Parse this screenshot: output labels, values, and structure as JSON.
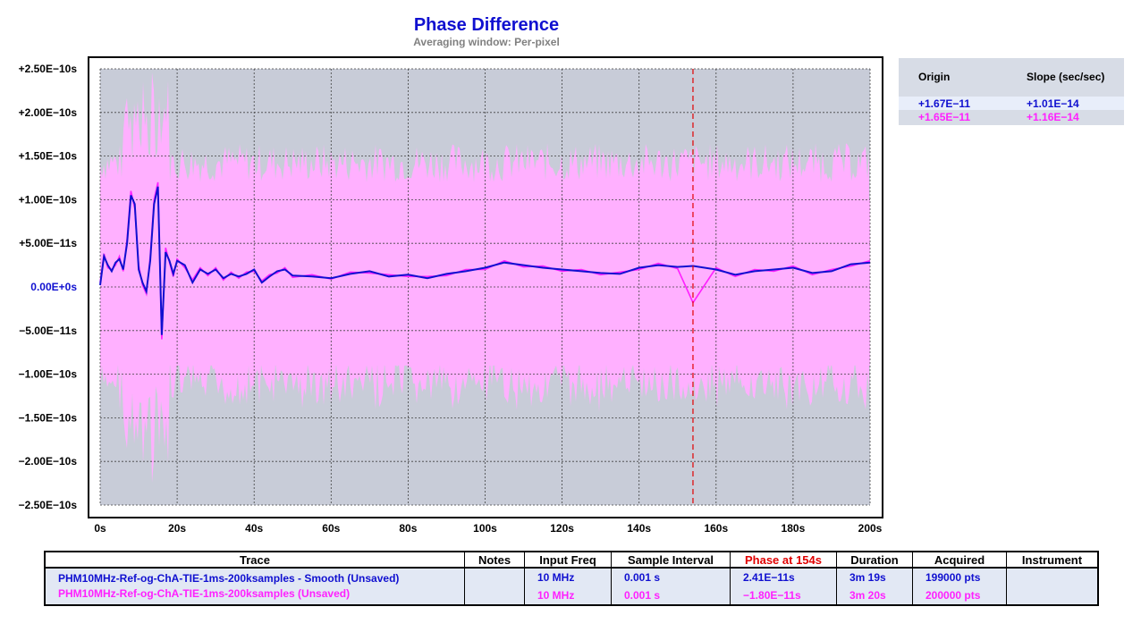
{
  "chart_data": {
    "type": "line",
    "title": "Phase Difference",
    "subtitle": "Averaging window: Per-pixel",
    "xlim": [
      0,
      200
    ],
    "ylim": [
      -2.5e-10,
      2.5e-10
    ],
    "x_ticks": [
      "0s",
      "20s",
      "40s",
      "60s",
      "80s",
      "100s",
      "120s",
      "140s",
      "160s",
      "180s",
      "200s"
    ],
    "y_ticks": [
      "+2.50E−10s",
      "+2.00E−10s",
      "+1.50E−10s",
      "+1.00E−10s",
      "+5.00E−11s",
      "0.00E+0s",
      "−5.00E−11s",
      "−1.00E−10s",
      "−1.50E−10s",
      "−2.00E−10s",
      "−2.50E−10s"
    ],
    "cursor_x": 154,
    "grid": true,
    "series": [
      {
        "color": "#1010d0",
        "x": [
          0,
          1,
          2,
          3,
          4,
          5,
          6,
          7,
          8,
          9,
          10,
          11,
          12,
          13,
          14,
          15,
          16,
          17,
          18,
          19,
          20,
          22,
          24,
          26,
          28,
          30,
          32,
          34,
          36,
          38,
          40,
          42,
          44,
          46,
          48,
          50,
          55,
          60,
          65,
          70,
          75,
          80,
          85,
          90,
          95,
          100,
          105,
          110,
          115,
          120,
          125,
          130,
          135,
          140,
          145,
          150,
          154,
          160,
          165,
          170,
          175,
          180,
          185,
          190,
          195,
          200
        ],
        "values": [
          2e-12,
          3.5e-11,
          2.5e-11,
          1.8e-11,
          2.8e-11,
          3.2e-11,
          2e-11,
          5e-11,
          1.05e-10,
          9.5e-11,
          2e-11,
          5e-12,
          -5e-12,
          3e-11,
          9.5e-11,
          1.15e-10,
          -5.5e-11,
          4e-11,
          3e-11,
          1.5e-11,
          3e-11,
          2.5e-11,
          5e-12,
          2e-11,
          1.5e-11,
          2e-11,
          1e-11,
          1.5e-11,
          1.2e-11,
          1.5e-11,
          2e-11,
          5e-12,
          1.2e-11,
          1.8e-11,
          2e-11,
          1.3e-11,
          1.2e-11,
          1e-11,
          1.5e-11,
          1.8e-11,
          1.2e-11,
          1.4e-11,
          1e-11,
          1.5e-11,
          1.8e-11,
          2.2e-11,
          2.8e-11,
          2.5e-11,
          2.2e-11,
          2e-11,
          1.8e-11,
          1.6e-11,
          1.5e-11,
          2.2e-11,
          2.5e-11,
          2.3e-11,
          2.41e-11,
          2e-11,
          1.4e-11,
          1.8e-11,
          2e-11,
          2.2e-11,
          1.6e-11,
          1.8e-11,
          2.6e-11,
          2.8e-11
        ]
      },
      {
        "color": "#ff20ff",
        "x": [
          0,
          1,
          2,
          3,
          4,
          5,
          6,
          7,
          8,
          9,
          10,
          11,
          12,
          13,
          14,
          15,
          16,
          17,
          18,
          19,
          20,
          22,
          24,
          26,
          28,
          30,
          32,
          34,
          36,
          38,
          40,
          42,
          44,
          46,
          48,
          50,
          55,
          60,
          65,
          70,
          75,
          80,
          85,
          90,
          95,
          100,
          105,
          110,
          115,
          120,
          125,
          130,
          135,
          140,
          145,
          150,
          154,
          160,
          165,
          170,
          175,
          180,
          185,
          190,
          195,
          200
        ],
        "values": [
          5e-12,
          3.8e-11,
          2.2e-11,
          2e-11,
          2.5e-11,
          3.5e-11,
          1.8e-11,
          5.5e-11,
          1.1e-10,
          9e-11,
          2.5e-11,
          2e-12,
          -8e-12,
          3.5e-11,
          1e-10,
          1.2e-10,
          -6e-11,
          4.5e-11,
          2.8e-11,
          1.2e-11,
          3.2e-11,
          2.2e-11,
          8e-12,
          2.2e-11,
          1.3e-11,
          2.2e-11,
          8e-12,
          1.7e-11,
          1e-11,
          1.7e-11,
          1.8e-11,
          7e-12,
          1.4e-11,
          1.6e-11,
          2.2e-11,
          1.1e-11,
          1.4e-11,
          9e-12,
          1.7e-11,
          1.6e-11,
          1.4e-11,
          1.2e-11,
          1.2e-11,
          1.3e-11,
          2e-11,
          2e-11,
          3e-11,
          2.3e-11,
          2.4e-11,
          1.8e-11,
          2e-11,
          1.4e-11,
          1.7e-11,
          2e-11,
          2.7e-11,
          2.1e-11,
          -1.8e-11,
          2.2e-11,
          1.2e-11,
          2e-11,
          1.8e-11,
          2.4e-11,
          1.4e-11,
          2e-11,
          2.4e-11,
          3e-11
        ]
      }
    ]
  },
  "legend_box": {
    "headers": [
      "Origin",
      "Slope (sec/sec)"
    ],
    "rows": [
      {
        "origin": "+1.67E−11",
        "slope": "+1.01E−14",
        "color": "#1010d0"
      },
      {
        "origin": "+1.65E−11",
        "slope": "+1.16E−14",
        "color": "#ff20ff"
      }
    ]
  },
  "table": {
    "headers": [
      "Trace",
      "Notes",
      "Input Freq",
      "Sample Interval",
      "Phase at 154s",
      "Duration",
      "Acquired",
      "Instrument"
    ],
    "phase_header_color": "#e00000",
    "rows": [
      {
        "trace": "PHM10MHz-Ref-og-ChA-TIE-1ms-200ksamples  -  Smooth  (Unsaved)",
        "notes": "",
        "freq": "10 MHz",
        "interval": "0.001 s",
        "phase": "2.41E−11s",
        "duration": "3m 19s",
        "acquired": "199000 pts",
        "instrument": ""
      },
      {
        "trace": "PHM10MHz-Ref-og-ChA-TIE-1ms-200ksamples  (Unsaved)",
        "notes": "",
        "freq": "10 MHz",
        "interval": "0.001 s",
        "phase": "−1.80E−11s",
        "duration": "3m 20s",
        "acquired": "200000 pts",
        "instrument": ""
      }
    ]
  }
}
